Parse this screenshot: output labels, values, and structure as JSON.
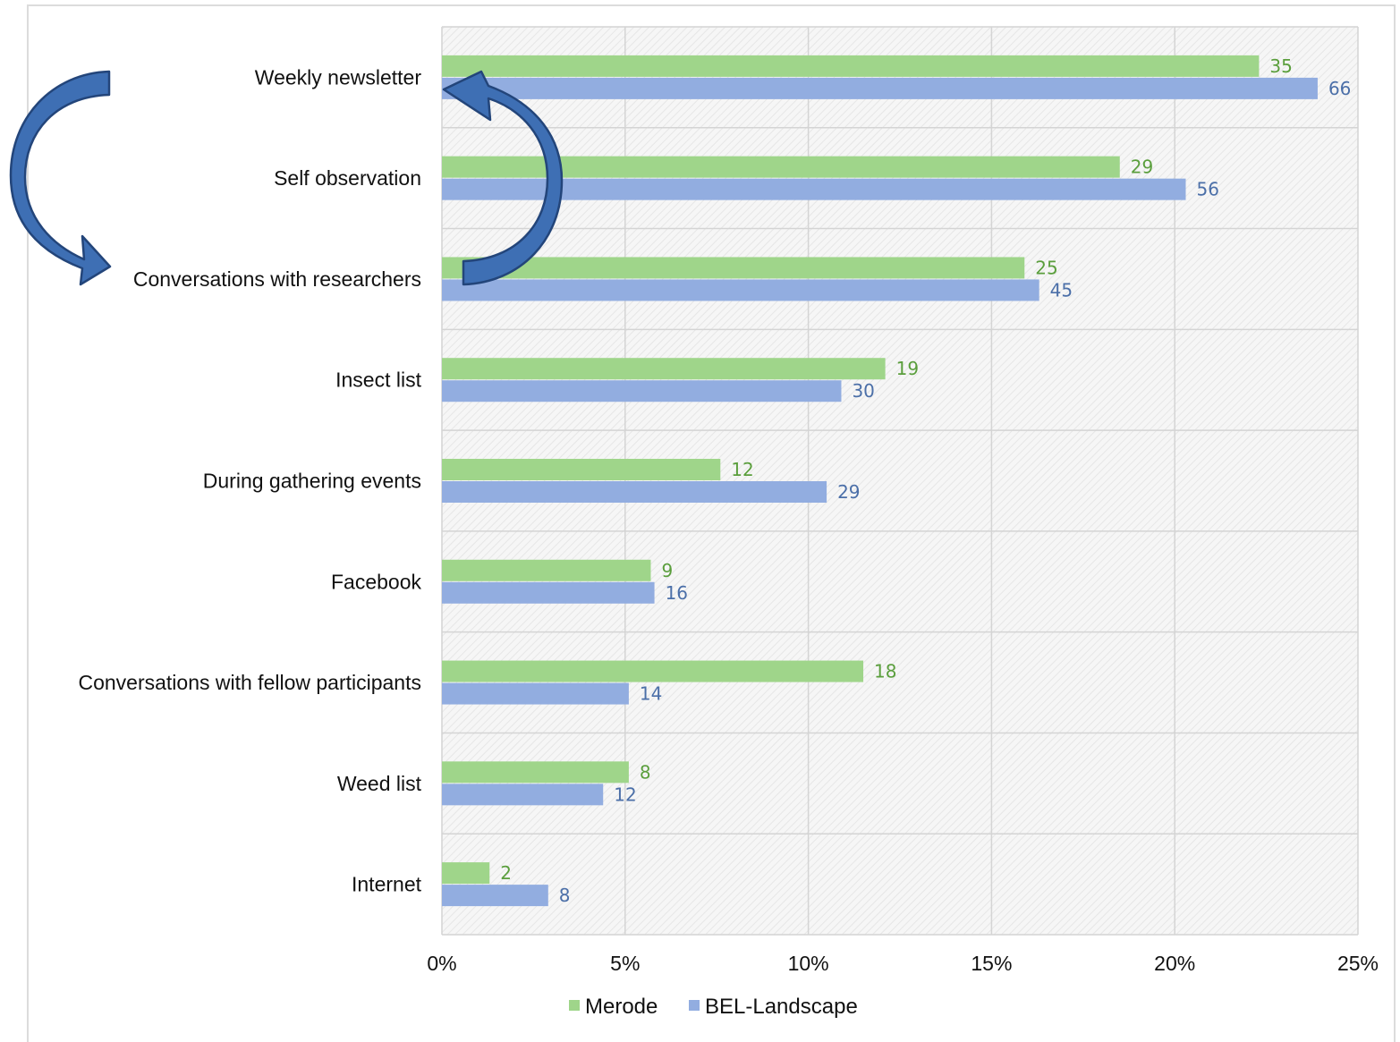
{
  "chart_data": {
    "type": "bar",
    "orientation": "horizontal",
    "categories": [
      "Weekly newsletter",
      "Self observation",
      "Conversations with researchers",
      "Insect list",
      "During gathering events",
      "Facebook",
      "Conversations with fellow participants",
      "Weed list",
      "Internet"
    ],
    "series": [
      {
        "name": "Merode",
        "color": "#9fd58a",
        "label_color": "#5a9e3c",
        "percent": [
          22.3,
          18.5,
          15.9,
          12.1,
          7.6,
          5.7,
          11.5,
          5.1,
          1.3
        ],
        "labels": [
          "35",
          "29",
          "25",
          "19",
          "12",
          "9",
          "18",
          "8",
          "2"
        ]
      },
      {
        "name": "BEL-Landscape",
        "color": "#92ade0",
        "label_color": "#4b6fa8",
        "percent": [
          23.9,
          20.3,
          16.3,
          10.9,
          10.5,
          5.8,
          5.1,
          4.4,
          2.9
        ],
        "labels": [
          "66",
          "56",
          "45",
          "30",
          "29",
          "16",
          "14",
          "12",
          "8"
        ]
      }
    ],
    "x_ticks": [
      "0%",
      "5%",
      "10%",
      "15%",
      "20%",
      "25%"
    ],
    "xlim": [
      0,
      25
    ],
    "x_unit": "percent",
    "grid": "vertical",
    "legend_position": "bottom-center",
    "annotations": [
      {
        "shape": "curved-arrow",
        "description": "Weekly newsletter to Conversations with researchers",
        "color": "#3c6db0"
      },
      {
        "shape": "curved-arrow",
        "description": "Conversations with researchers to Weekly newsletter",
        "color": "#3c6db0"
      }
    ]
  }
}
